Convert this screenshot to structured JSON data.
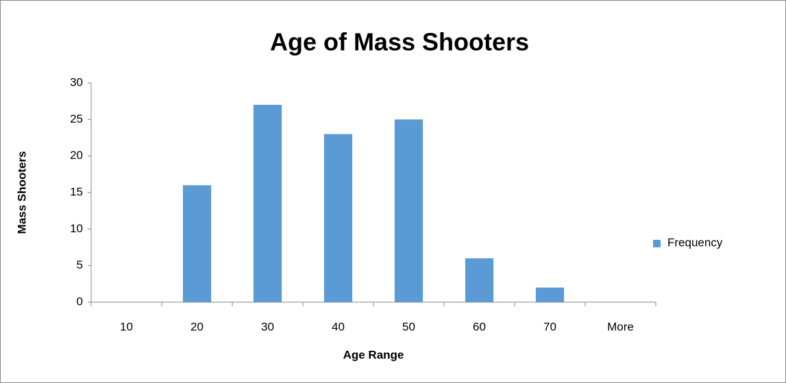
{
  "chart_data": {
    "type": "bar",
    "title": "Age of Mass Shooters",
    "x_label": "Age Range",
    "y_label": "Mass Shooters",
    "categories": [
      "10",
      "20",
      "30",
      "40",
      "50",
      "60",
      "70",
      "More"
    ],
    "series": [
      {
        "name": "Frequency",
        "color": "#5b9bd5",
        "values": [
          0,
          16,
          27,
          23,
          25,
          6,
          2,
          0
        ]
      }
    ],
    "ylim": [
      0,
      30
    ],
    "yticks": [
      0,
      5,
      10,
      15,
      20,
      25,
      30
    ],
    "grid": false,
    "legend": "right"
  }
}
